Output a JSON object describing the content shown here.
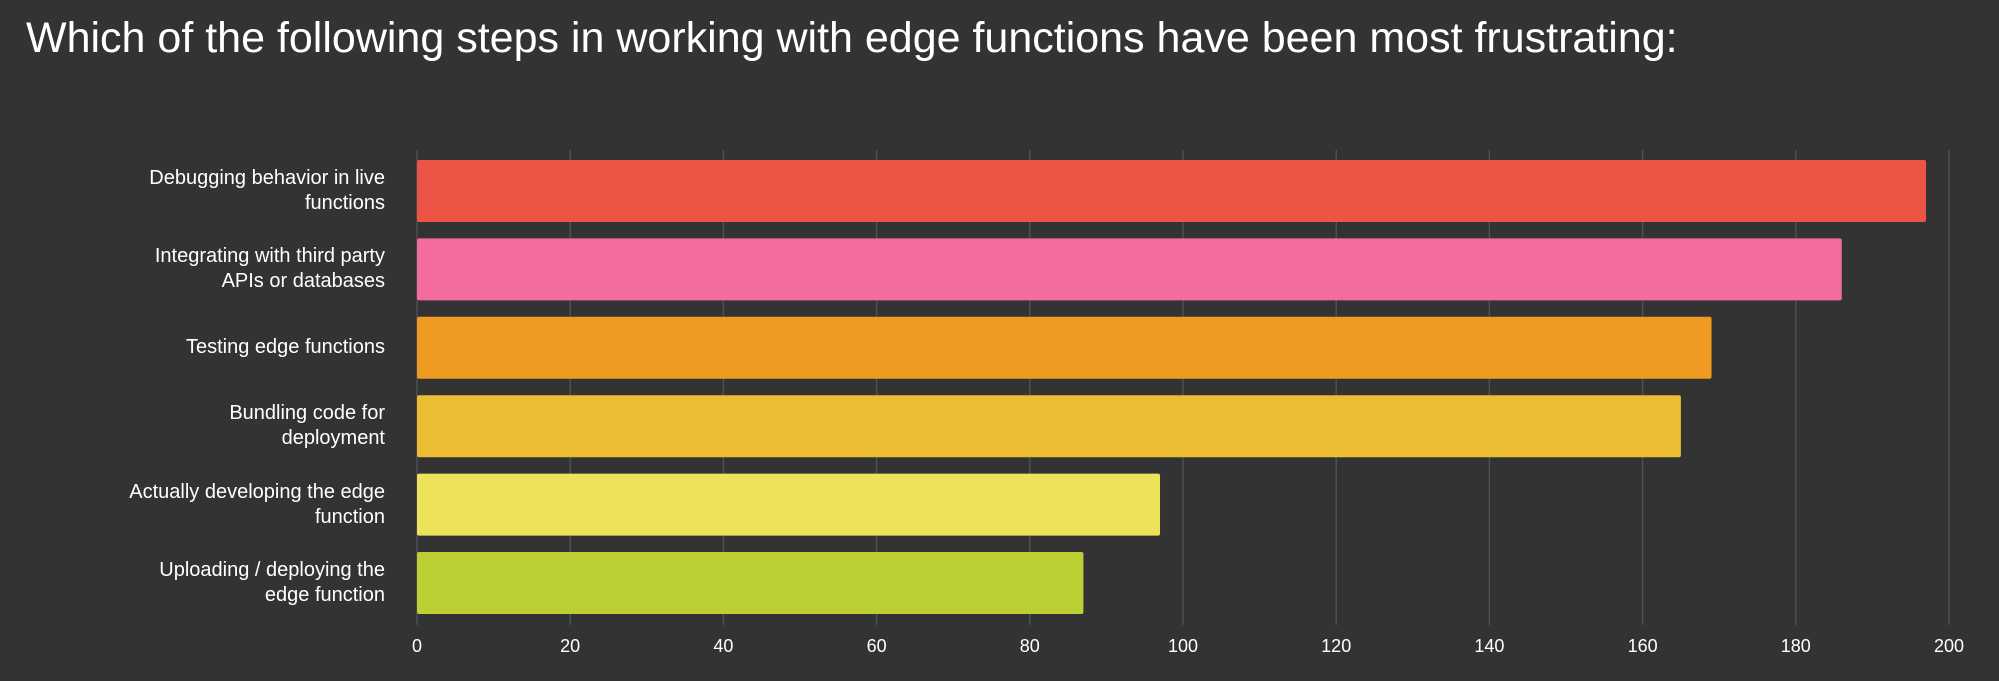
{
  "chart_data": {
    "type": "bar",
    "orientation": "horizontal",
    "title": "Which of the following steps in working with edge functions have been most frustrating:",
    "categories": [
      "Debugging behavior in live functions",
      "Integrating with third party APIs or databases",
      "Testing edge functions",
      "Bundling code for deployment",
      "Actually developing the edge function",
      "Uploading / deploying the edge function"
    ],
    "values": [
      197,
      186,
      169,
      165,
      97,
      87
    ],
    "colors": [
      "#ec5446",
      "#f46b9d",
      "#ef9a21",
      "#ecbd33",
      "#ede35b",
      "#bcd033"
    ],
    "xlim": [
      0,
      200
    ],
    "xticks": [
      0,
      20,
      40,
      60,
      80,
      100,
      120,
      140,
      160,
      180,
      200
    ],
    "grid": true
  }
}
